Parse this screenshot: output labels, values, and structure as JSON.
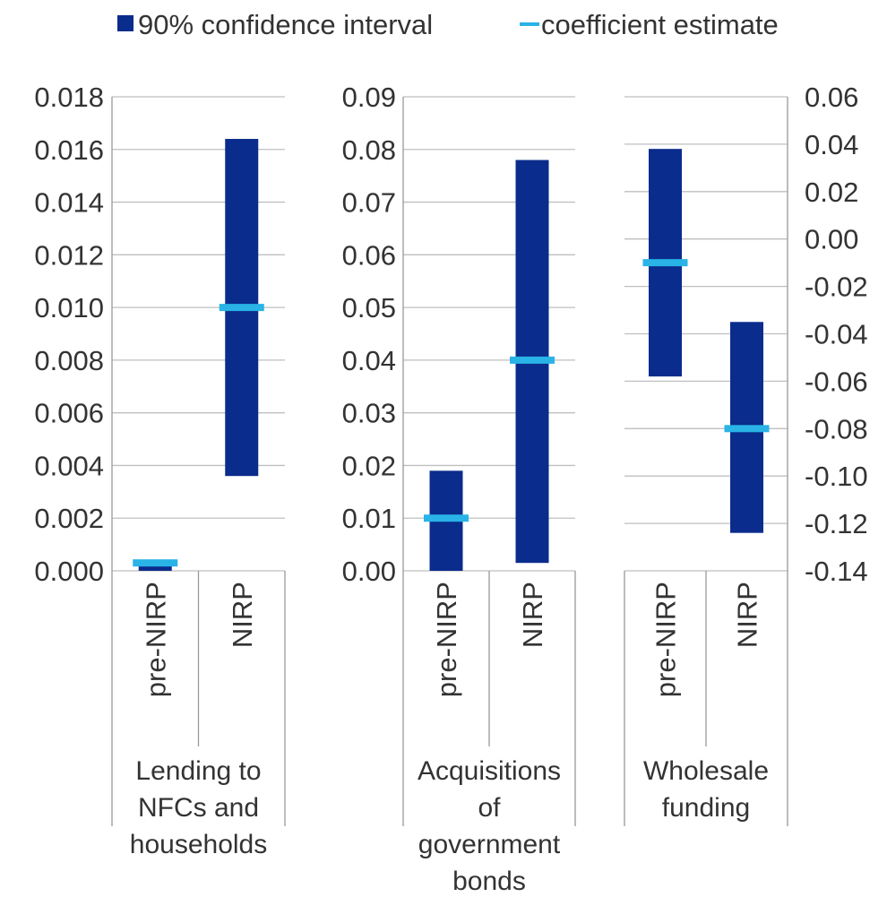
{
  "legend": {
    "placement": "top",
    "ci_label": "90% confidence interval",
    "estimate_label": "coefficient estimate"
  },
  "colors": {
    "ci_bar": "#0a2c8c",
    "estimate": "#29b3e6",
    "gridline": "#bfbfbf",
    "axis": "#999999"
  },
  "chart_data": [
    {
      "type": "bar",
      "title": "",
      "panel_label": [
        "Lending to",
        "NFCs and",
        "households"
      ],
      "axis_side": "left",
      "ylim": [
        0,
        0.018
      ],
      "yticks": [
        0,
        0.002,
        0.004,
        0.006,
        0.008,
        0.01,
        0.012,
        0.014,
        0.016,
        0.018
      ],
      "ytick_labels": [
        "0.000",
        "0.002",
        "0.004",
        "0.006",
        "0.008",
        "0.010",
        "0.012",
        "0.014",
        "0.016",
        "0.018"
      ],
      "categories": [
        "pre-NIRP",
        "NIRP"
      ],
      "ci_low": [
        0.0,
        0.0036
      ],
      "ci_high": [
        0.0003,
        0.0164
      ],
      "estimate": [
        0.0003,
        0.01
      ],
      "grid": true
    },
    {
      "type": "bar",
      "title": "",
      "panel_label": [
        "Acquisitions",
        "of",
        "government",
        "bonds"
      ],
      "axis_side": "left",
      "ylim": [
        0,
        0.09
      ],
      "yticks": [
        0,
        0.01,
        0.02,
        0.03,
        0.04,
        0.05,
        0.06,
        0.07,
        0.08,
        0.09
      ],
      "ytick_labels": [
        "0.00",
        "0.01",
        "0.02",
        "0.03",
        "0.04",
        "0.05",
        "0.06",
        "0.07",
        "0.08",
        "0.09"
      ],
      "categories": [
        "pre-NIRP",
        "NIRP"
      ],
      "ci_low": [
        0.0,
        0.0015
      ],
      "ci_high": [
        0.019,
        0.078
      ],
      "estimate": [
        0.01,
        0.04
      ],
      "grid": true
    },
    {
      "type": "bar",
      "title": "",
      "panel_label": [
        "Wholesale",
        "funding"
      ],
      "axis_side": "right",
      "ylim": [
        -0.14,
        0.06
      ],
      "yticks": [
        -0.14,
        -0.12,
        -0.1,
        -0.08,
        -0.06,
        -0.04,
        -0.02,
        0.0,
        0.02,
        0.04,
        0.06
      ],
      "ytick_labels": [
        "-0.14",
        "-0.12",
        "-0.10",
        "-0.08",
        "-0.06",
        "-0.04",
        "-0.02",
        "0.00",
        "0.02",
        "0.04",
        "0.06"
      ],
      "categories": [
        "pre-NIRP",
        "NIRP"
      ],
      "ci_low": [
        -0.058,
        -0.124
      ],
      "ci_high": [
        0.038,
        -0.035
      ],
      "estimate": [
        -0.01,
        -0.08
      ],
      "grid": true
    }
  ]
}
